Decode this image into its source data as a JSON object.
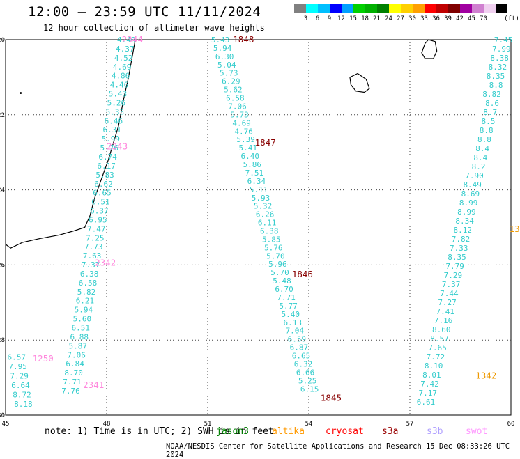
{
  "title": "12:00 — 23:59 UTC 11/11/2024",
  "subtitle": "12 hour collection of altimeter wave heights",
  "legend": {
    "unit": "(ft)",
    "colors": [
      "#808080",
      "#00ffff",
      "#00bfff",
      "#0000ff",
      "#00a0ff",
      "#00d000",
      "#00b000",
      "#008000",
      "#ffff00",
      "#ffd000",
      "#ffa000",
      "#ff0000",
      "#c00000",
      "#800000",
      "#a000a0",
      "#d080d0",
      "#f0d0f0",
      "#000000"
    ],
    "levels": [
      "3",
      "6",
      "9",
      "12",
      "15",
      "18",
      "21",
      "24",
      "27",
      "30",
      "33",
      "36",
      "39",
      "42",
      "45",
      "70"
    ]
  },
  "axes": {
    "lon_ticks": [
      "45",
      "48",
      "51",
      "54",
      "57",
      "60"
    ],
    "lat_ticks": [
      "-20",
      "-22",
      "-24",
      "-26",
      "-28",
      "-30"
    ]
  },
  "map_data": {
    "lon_range": [
      45,
      60
    ],
    "lat_range": [
      -30,
      -20
    ],
    "tracks": [
      {
        "satellite": "jason3",
        "color": "#33cccc",
        "values": [
          "4.40",
          "4.37",
          "4.52",
          "4.69",
          "4.86",
          "4.46",
          "5.43",
          "5.26",
          "5.33",
          "6.46",
          "6.31",
          "5.99",
          "5.76",
          "6.74",
          "6.17",
          "5.83",
          "6.62",
          "6.65",
          "6.51",
          "6.37",
          "6.95",
          "7.47",
          "7.25",
          "7.73",
          "7.63",
          "7.37",
          "6.38",
          "6.58",
          "5.82",
          "6.21",
          "5.94",
          "5.60",
          "6.51",
          "6.88",
          "5.87",
          "7.06",
          "6.84",
          "8.70",
          "7.71",
          "7.76"
        ],
        "time_labels": [
          {
            "text": "2344",
            "lon": 48.45,
            "lat": -20.0
          },
          {
            "text": "2343",
            "lon": 48.0,
            "lat": -22.85
          },
          {
            "text": "2342",
            "lon": 47.65,
            "lat": -25.95
          },
          {
            "text": "2341",
            "lon": 47.3,
            "lat": -29.2
          }
        ]
      },
      {
        "satellite": "altika",
        "color": "#33cccc",
        "values": [
          "5.43",
          "5.94",
          "6.30",
          "5.04",
          "5.73",
          "6.29",
          "5.62",
          "6.58",
          "7.06",
          "5.73",
          "4.69",
          "4.76",
          "5.39",
          "5.41",
          "6.40",
          "5.86",
          "7.51",
          "6.34",
          "5.11",
          "5.93",
          "5.32",
          "6.26",
          "6.11",
          "6.38",
          "5.85",
          "5.76",
          "5.70",
          "5.96",
          "5.70",
          "5.48",
          "6.70",
          "7.71",
          "5.77",
          "5.40",
          "6.13",
          "7.04",
          "6.59",
          "6.87",
          "6.65",
          "6.32",
          "6.66",
          "5.25",
          "6.15"
        ],
        "time_labels": [
          {
            "text": "1848",
            "lon": 51.75,
            "lat": -20.0
          },
          {
            "text": "1847",
            "lon": 52.4,
            "lat": -22.75
          },
          {
            "text": "1846",
            "lon": 53.5,
            "lat": -26.25
          },
          {
            "text": "1845",
            "lon": 54.35,
            "lat": -29.55
          }
        ]
      },
      {
        "satellite": "cryosat",
        "color": "#33cccc",
        "values": [
          "7.45",
          "7.99",
          "8.38",
          "8.32",
          "8.35",
          "8.8",
          "8.82",
          "8.6",
          "8.7",
          "8.5",
          "8.8",
          "8.8",
          "8.4",
          "8.4",
          "8.2",
          "7.90",
          "8.49",
          "8.69",
          "8.99",
          "8.99",
          "8.34",
          "8.12",
          "7.82",
          "7.33",
          "8.35",
          "7.79",
          "7.29",
          "7.37",
          "7.44",
          "7.27",
          "7.41",
          "7.16",
          "8.60",
          "8.57",
          "7.65",
          "7.72",
          "8.10",
          "8.01",
          "7.42",
          "7.17",
          "6.61"
        ],
        "time_labels": [
          {
            "text": "1342",
            "lon": 58.95,
            "lat": -28.95
          },
          {
            "text": "13",
            "lon": 59.95,
            "lat": -25.05
          }
        ]
      },
      {
        "satellite": "swot",
        "color": "#33cccc",
        "values": [
          "6.57",
          "7.95",
          "7.29",
          "6.64",
          "8.72",
          "8.18"
        ],
        "time_labels": [
          {
            "text": "1250",
            "lon": 45.8,
            "lat": -28.5
          }
        ]
      }
    ]
  },
  "footer": {
    "note": "note: 1) Time is in UTC; 2) SWH is in feet",
    "satellites": [
      {
        "name": "jason3",
        "color": "#008000"
      },
      {
        "name": "altika",
        "color": "#ff9900"
      },
      {
        "name": "cryosat",
        "color": "#ff0000"
      },
      {
        "name": "s3a",
        "color": "#990000"
      },
      {
        "name": "s3b",
        "color": "#b0a0ff"
      },
      {
        "name": "swot",
        "color": "#ff99ff"
      }
    ],
    "credit": "NOAA/NESDIS Center for Satellite Applications and Research   15 Dec 08:33:26 UTC 2024"
  }
}
